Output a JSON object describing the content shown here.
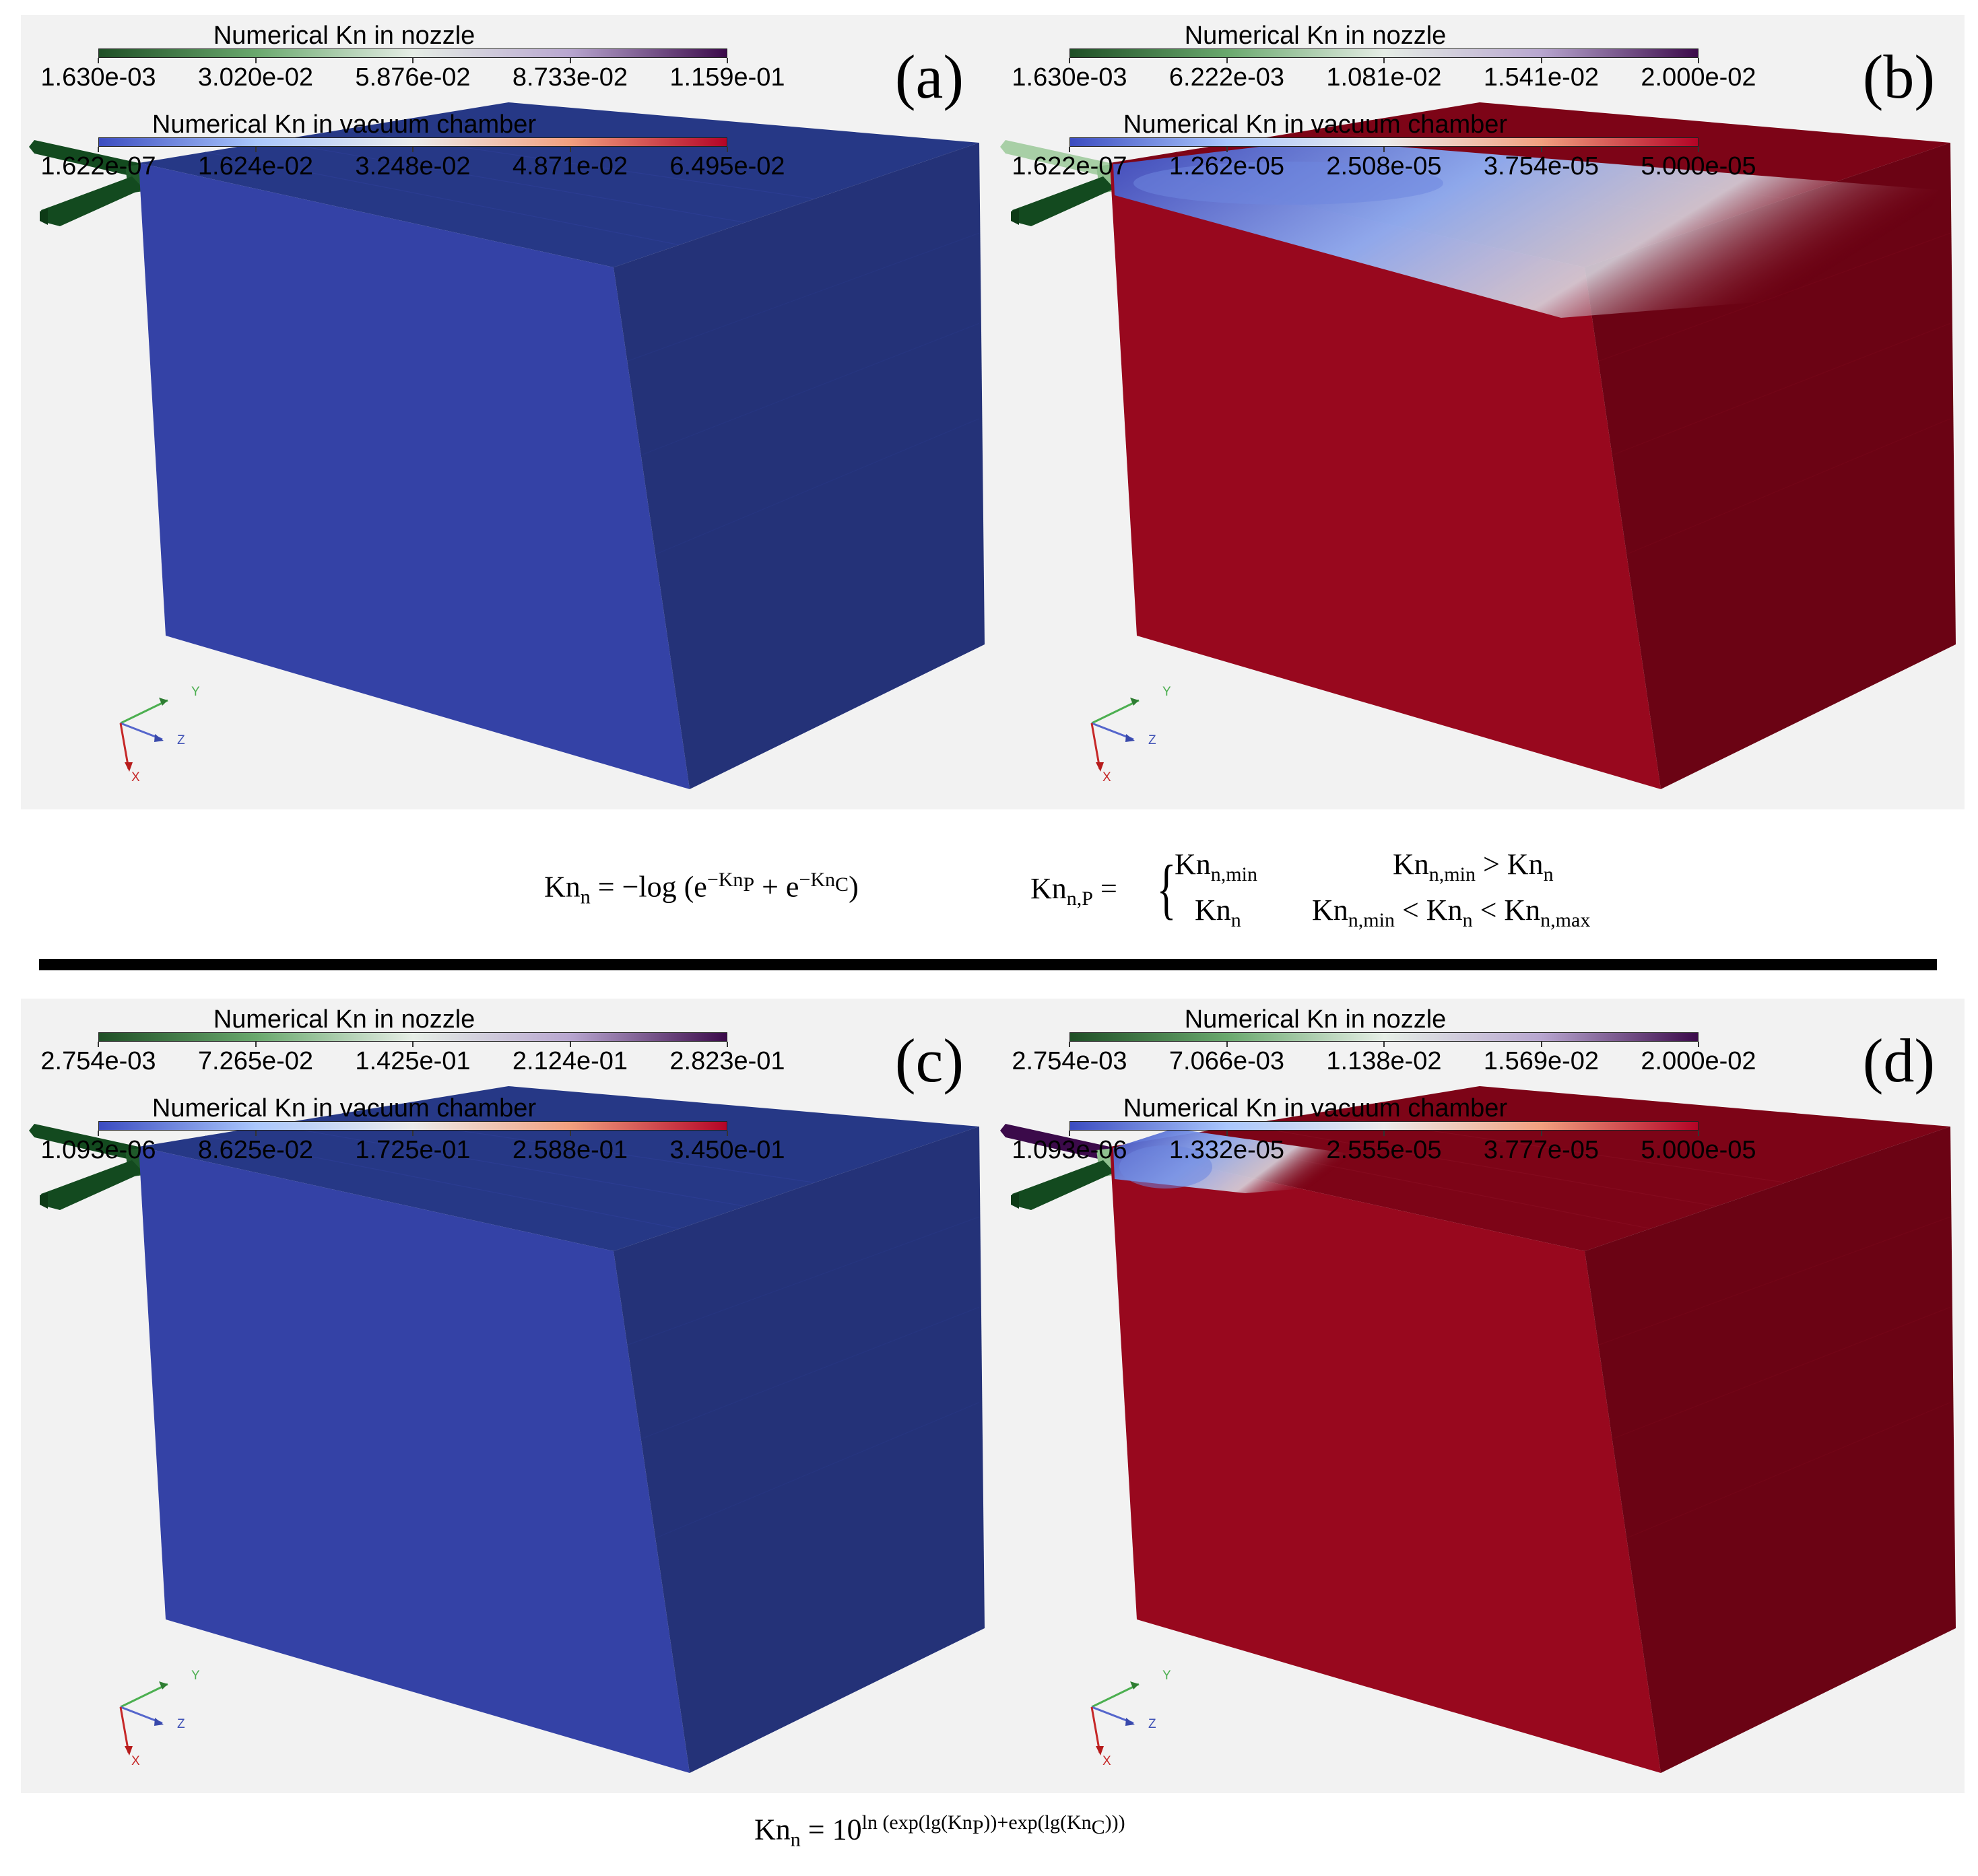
{
  "colors": {
    "nozzle_scale": [
      "#1f4f26",
      "#69a86d",
      "#e6eee6",
      "#b8a6d0",
      "#3b0a4a"
    ],
    "chamber_scale": [
      "#3b4cc0",
      "#aac7fd",
      "#ececec",
      "#f2a07f",
      "#b40426"
    ],
    "blue_face_front": "#3442a6",
    "blue_face_top": "#263886",
    "blue_face_side": "#243278",
    "red_face_front": "#98081e",
    "red_face_top": "#7d0417",
    "red_face_side": "#6b0314",
    "nozzle_dark": "#134a1f",
    "panel_bg": "#f2f2f2"
  },
  "axes_triad": {
    "x": "X",
    "y": "Y",
    "z": "Z"
  },
  "panels": [
    {
      "label": "(a)",
      "nozzle_title": "Numerical Kn in nozzle",
      "nozzle_ticks": [
        "1.630e-03",
        "3.020e-02",
        "5.876e-02",
        "8.733e-02",
        "1.159e-01"
      ],
      "chamber_title": "Numerical Kn in vacuum chamber",
      "chamber_ticks": [
        "1.622e-07",
        "1.624e-02",
        "3.248e-02",
        "4.871e-02",
        "6.495e-02"
      ],
      "style": "blue",
      "nozzle_fill_level": 0.0,
      "jet_extent": 0.0
    },
    {
      "label": "(b)",
      "nozzle_title": "Numerical Kn in nozzle",
      "nozzle_ticks": [
        "1.630e-03",
        "6.222e-03",
        "1.081e-02",
        "1.541e-02",
        "2.000e-02"
      ],
      "chamber_title": "Numerical Kn in vacuum chamber",
      "chamber_ticks": [
        "1.622e-07",
        "1.262e-05",
        "2.508e-05",
        "3.754e-05",
        "5.000e-05"
      ],
      "style": "red",
      "nozzle_fill_level": 0.25,
      "jet_extent": 1.0
    },
    {
      "label": "(c)",
      "nozzle_title": "Numerical Kn in nozzle",
      "nozzle_ticks": [
        "2.754e-03",
        "7.265e-02",
        "1.425e-01",
        "2.124e-01",
        "2.823e-01"
      ],
      "chamber_title": "Numerical Kn in vacuum chamber",
      "chamber_ticks": [
        "1.093e-06",
        "8.625e-02",
        "1.725e-01",
        "2.588e-01",
        "3.450e-01"
      ],
      "style": "blue",
      "nozzle_fill_level": 0.0,
      "jet_extent": 0.0
    },
    {
      "label": "(d)",
      "nozzle_title": "Numerical Kn in nozzle",
      "nozzle_ticks": [
        "2.754e-03",
        "7.066e-03",
        "1.138e-02",
        "1.569e-02",
        "2.000e-02"
      ],
      "chamber_title": "Numerical Kn in vacuum chamber",
      "chamber_ticks": [
        "1.093e-06",
        "1.332e-05",
        "2.555e-05",
        "3.777e-05",
        "5.000e-05"
      ],
      "style": "red",
      "nozzle_fill_level": 1.0,
      "jet_extent": 0.3
    }
  ],
  "formulas": {
    "top_left": {
      "lhs": "Kn",
      "lhs_sub": "n",
      "rhs_prefix": "= −log (e",
      "exp1": "−Kn",
      "exp1_sub": "P",
      "mid": "+ e",
      "exp2": "−Kn",
      "exp2_sub": "C",
      "close": ")"
    },
    "top_right": {
      "lhs": "Kn",
      "lhs_sub": "n,P",
      "eq": "=",
      "case1_val": "Kn",
      "case1_val_sub": "n,min",
      "case1_cond_a": "Kn",
      "case1_cond_a_sub": "n,min",
      "case1_op": ">",
      "case1_cond_b": "Kn",
      "case1_cond_b_sub": "n",
      "case2_val": "Kn",
      "case2_val_sub": "n",
      "case2_cond_a": "Kn",
      "case2_cond_a_sub": "n,min",
      "case2_op1": "<",
      "case2_cond_b": "Kn",
      "case2_cond_b_sub": "n",
      "case2_op2": "<",
      "case2_cond_c": "Kn",
      "case2_cond_c_sub": "n,max"
    },
    "bottom": {
      "lhs": "Kn",
      "lhs_sub": "n",
      "eq": "= 10",
      "exponent": "ln (exp(lg(Kn",
      "exponent_sub1": "P",
      "exponent_mid": "))+exp(lg(Kn",
      "exponent_sub2": "C",
      "exponent_end": ")))"
    }
  }
}
